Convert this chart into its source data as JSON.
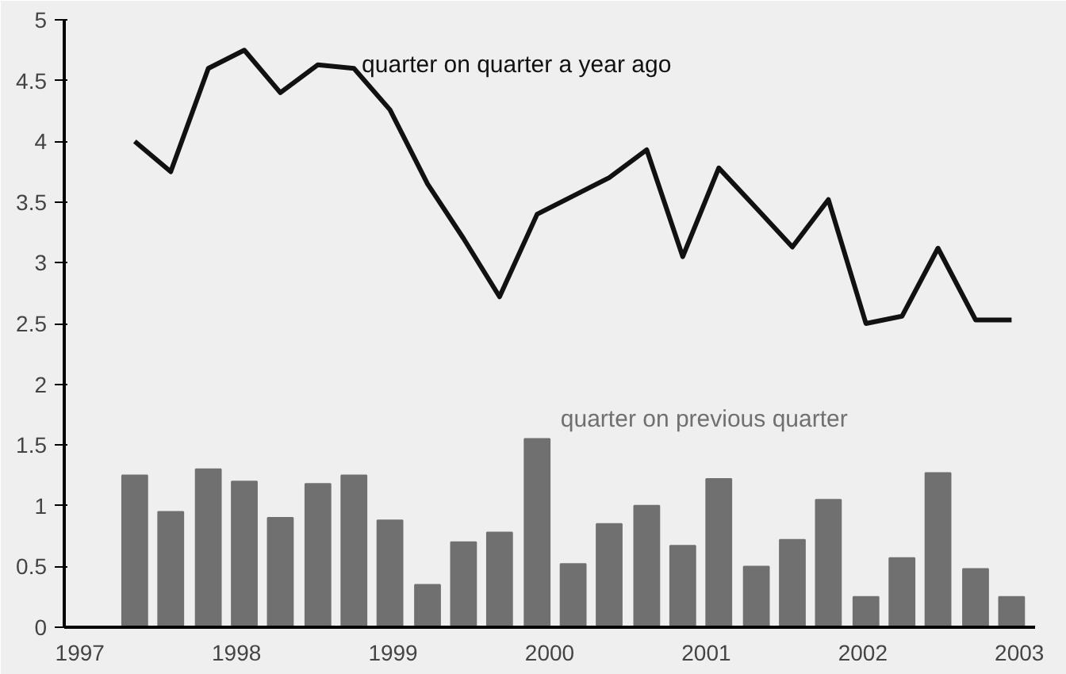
{
  "chart_data": {
    "type": "bar",
    "x": [
      1997.35,
      1997.58,
      1997.82,
      1998.05,
      1998.28,
      1998.52,
      1998.75,
      1998.98,
      1999.22,
      1999.45,
      1999.68,
      1999.92,
      2000.15,
      2000.38,
      2000.62,
      2000.85,
      2001.08,
      2001.32,
      2001.55,
      2001.78,
      2002.02,
      2002.25,
      2002.48,
      2002.72,
      2002.95
    ],
    "series": [
      {
        "name": "quarter on quarter a year ago",
        "type": "line",
        "color": "#111111",
        "values": [
          4.0,
          3.75,
          4.6,
          4.75,
          4.4,
          4.63,
          4.6,
          4.26,
          3.65,
          3.2,
          2.72,
          3.4,
          3.55,
          3.7,
          3.93,
          3.05,
          3.78,
          3.45,
          3.13,
          3.52,
          2.5,
          2.56,
          3.12,
          2.53,
          2.53
        ]
      },
      {
        "name": "quarter on previous quarter",
        "color": "#707070",
        "values": [
          1.25,
          0.95,
          1.3,
          1.2,
          0.9,
          1.18,
          1.25,
          0.88,
          0.35,
          0.7,
          0.78,
          1.55,
          0.52,
          0.85,
          1.0,
          0.67,
          1.22,
          0.5,
          0.72,
          1.05,
          0.25,
          0.57,
          1.27,
          0.48,
          0.25
        ]
      }
    ],
    "xlim": [
      1996.9,
      2003.1
    ],
    "xticks": [
      1997,
      1998,
      1999,
      2000,
      2001,
      2002,
      2003
    ],
    "ylim": [
      0,
      5
    ],
    "yticks": [
      0,
      0.5,
      1,
      1.5,
      2,
      2.5,
      3,
      3.5,
      4,
      4.5,
      5
    ],
    "grid": false
  }
}
